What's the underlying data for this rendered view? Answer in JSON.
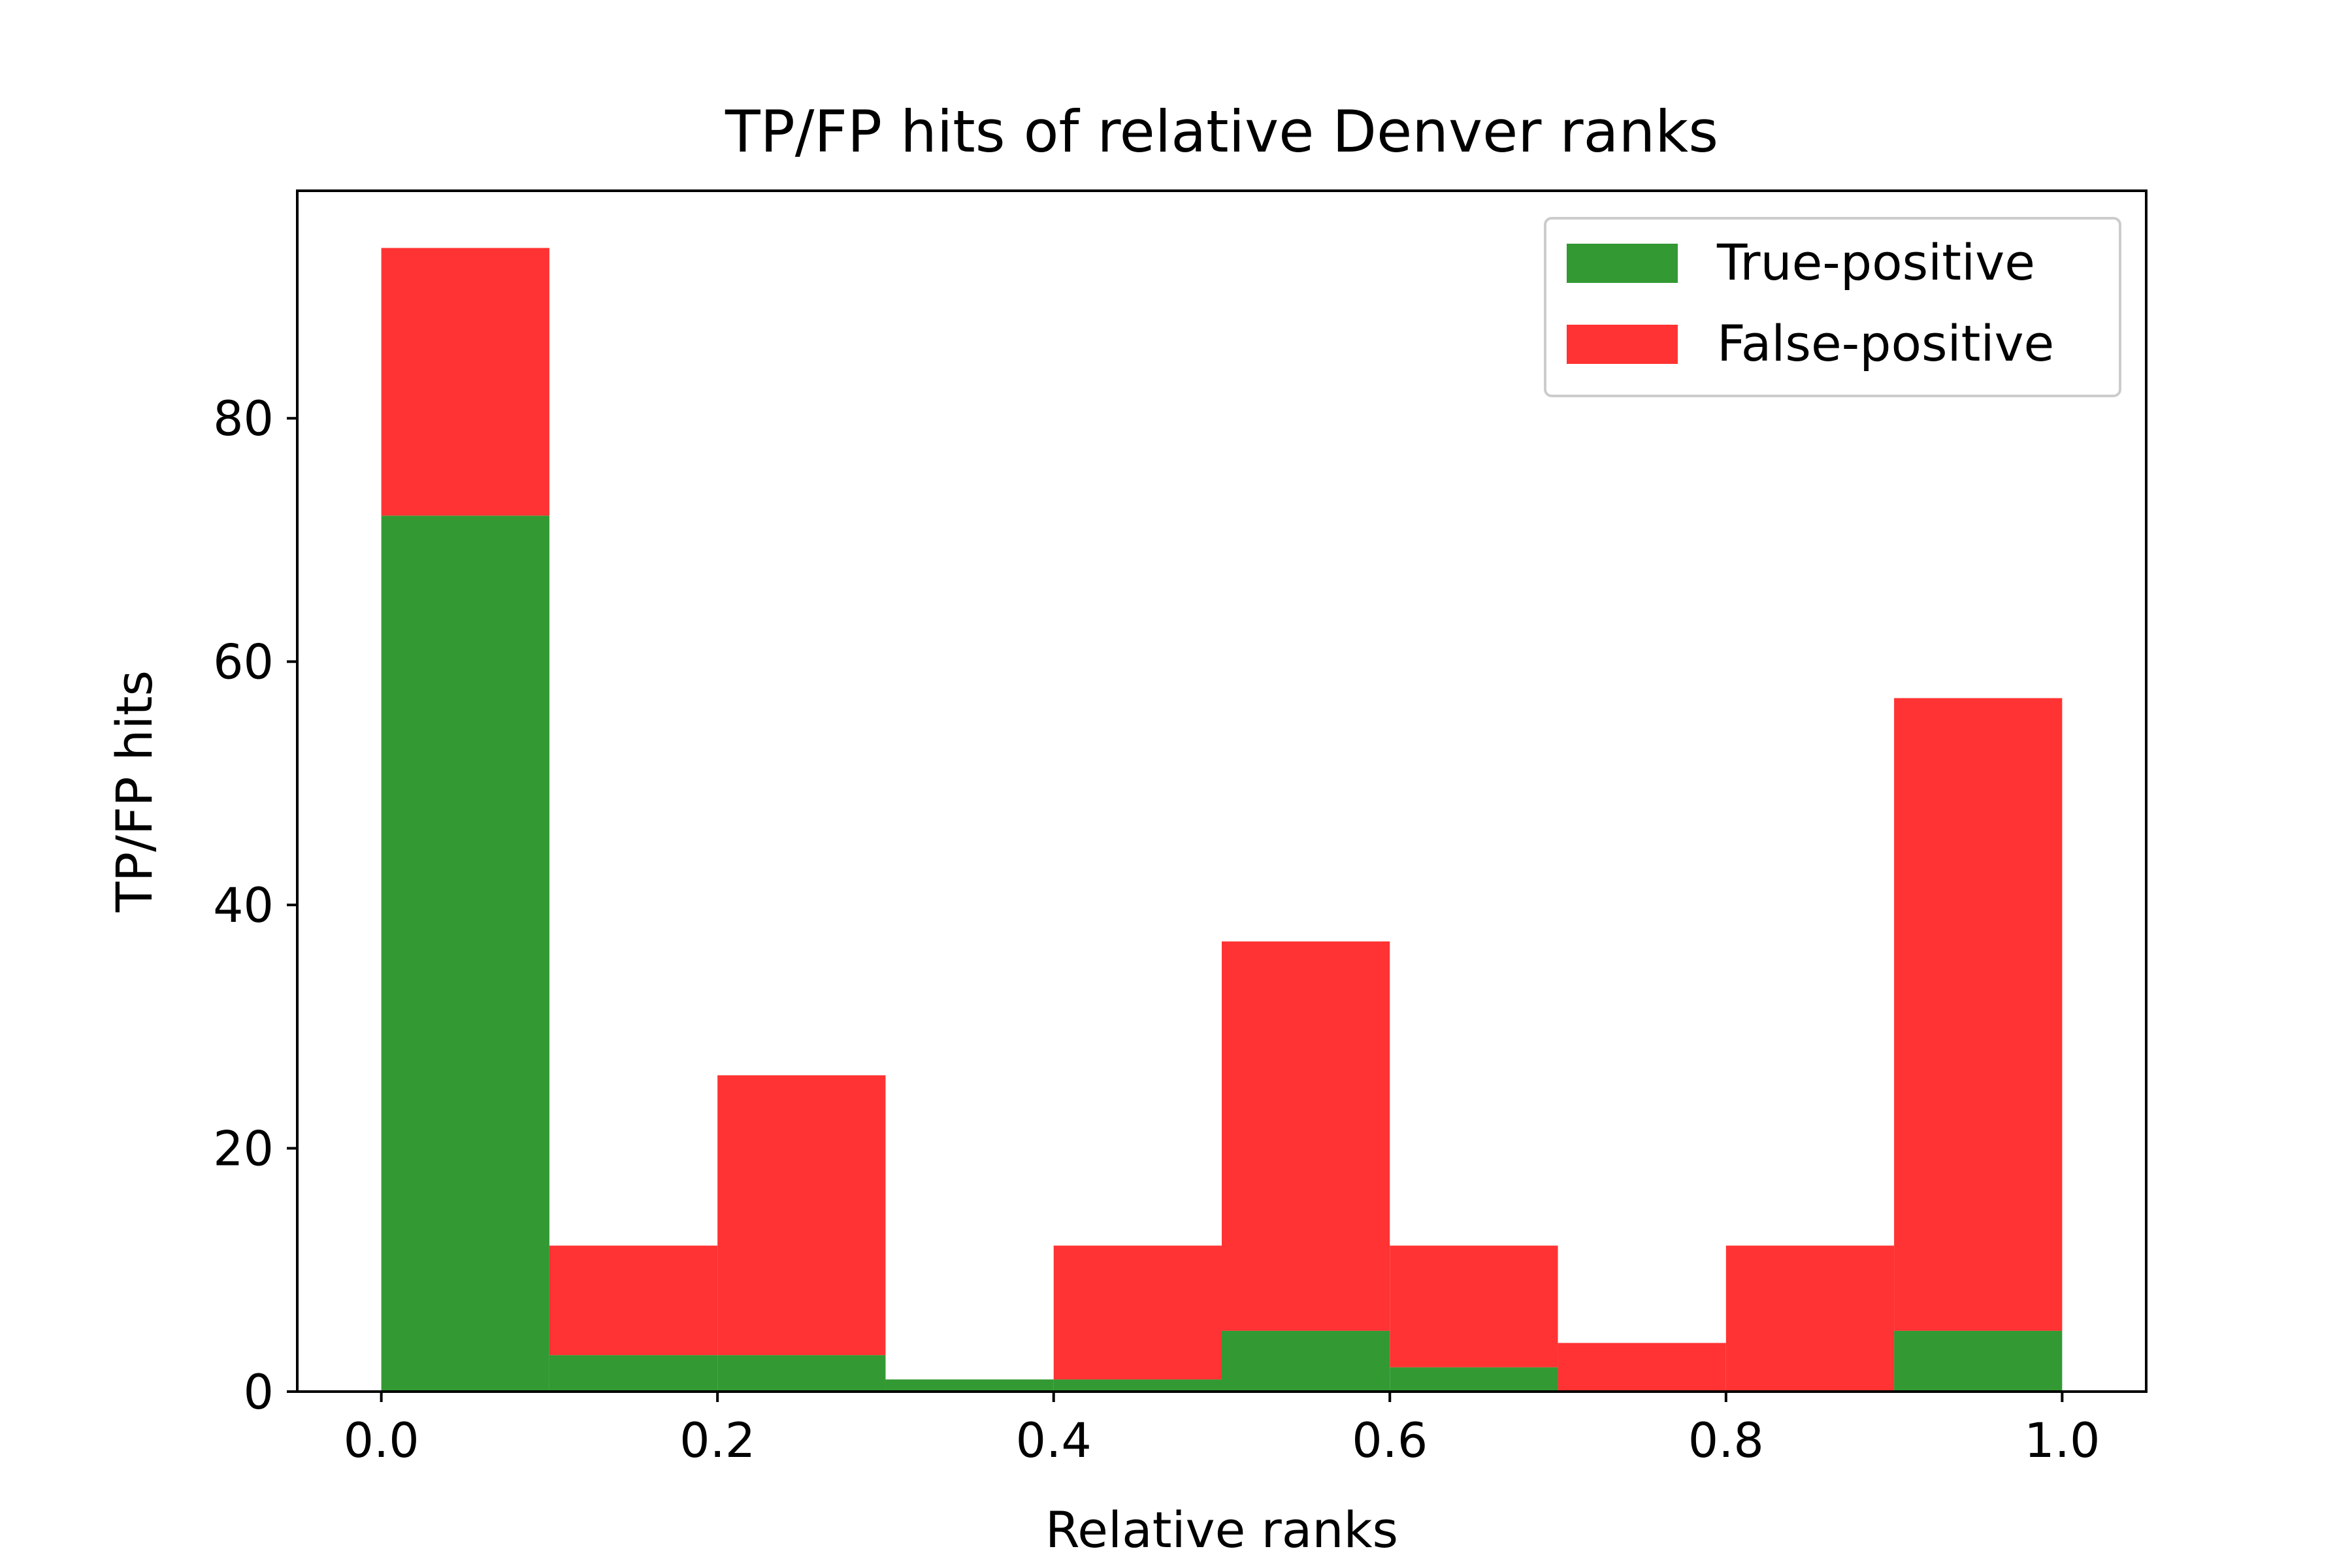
{
  "chart_data": {
    "type": "bar",
    "stacked": true,
    "title": "TP/FP hits of relative Denver ranks",
    "xlabel": "Relative ranks",
    "ylabel": "TP/FP hits",
    "bin_edges": [
      0.0,
      0.1,
      0.2,
      0.3,
      0.4,
      0.5,
      0.6,
      0.7,
      0.8,
      0.9,
      1.0
    ],
    "xlim": [
      -0.05,
      1.05
    ],
    "ylim": [
      0,
      98.7
    ],
    "x_ticks": [
      0.0,
      0.2,
      0.4,
      0.6,
      0.8,
      1.0
    ],
    "x_tick_labels": [
      "0.0",
      "0.2",
      "0.4",
      "0.6",
      "0.8",
      "1.0"
    ],
    "y_ticks": [
      0,
      20,
      40,
      60,
      80
    ],
    "y_tick_labels": [
      "0",
      "20",
      "40",
      "60",
      "80"
    ],
    "grid": false,
    "legend_position": "top-right",
    "series": [
      {
        "name": "True-positive",
        "color": "#339933",
        "values": [
          72,
          3,
          3,
          1,
          1,
          5,
          2,
          0,
          0,
          5
        ]
      },
      {
        "name": "False-positive",
        "color": "#ff3333",
        "values": [
          22,
          9,
          23,
          0,
          11,
          32,
          10,
          4,
          12,
          52
        ]
      }
    ]
  }
}
